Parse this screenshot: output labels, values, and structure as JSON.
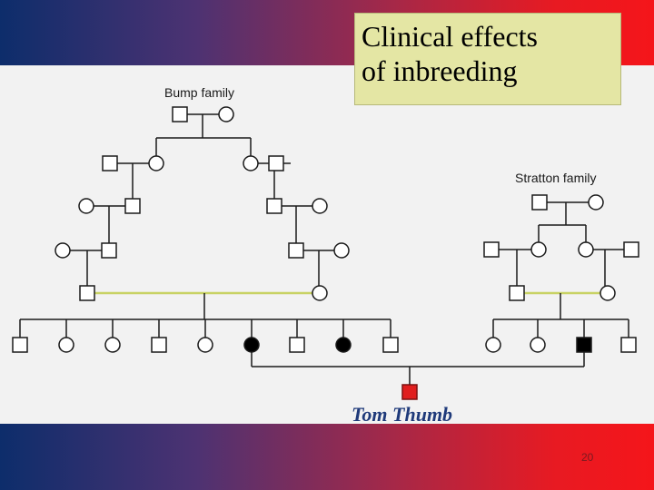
{
  "slide": {
    "title_line1": "Clinical effects",
    "title_line2": "of inbreeding",
    "page_number": "20"
  },
  "pedigree": {
    "bump_label": "Bump family",
    "stratton_label": "Stratton family",
    "proband_label": "Tom Thumb",
    "colors": {
      "line": "#1a1a1a",
      "consanguinity_line": "#c8d264",
      "affected_fill": "#000000",
      "proband_fill": "#e01e1e",
      "proband_label": "#1f3a7a"
    }
  }
}
